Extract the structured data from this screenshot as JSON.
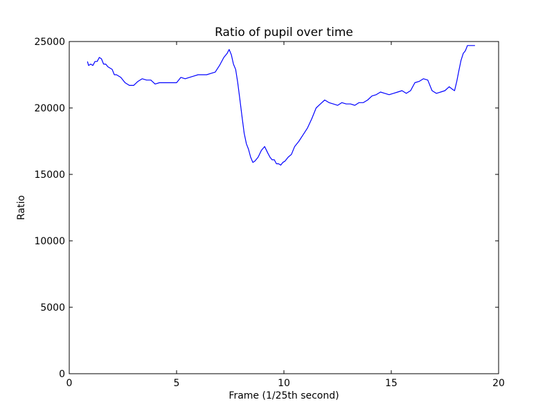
{
  "chart_data": {
    "type": "line",
    "title": "Ratio of pupil over time",
    "xlabel": "Frame (1/25th second)",
    "ylabel": "Ratio",
    "xlim": [
      0,
      20
    ],
    "ylim": [
      0,
      25000
    ],
    "xticks": [
      0,
      5,
      10,
      15,
      20
    ],
    "yticks": [
      0,
      5000,
      10000,
      15000,
      20000,
      25000
    ],
    "grid": false,
    "line_color": "#0000ff",
    "series": [
      {
        "x": [
          0.85,
          0.9,
          1.0,
          1.1,
          1.2,
          1.3,
          1.4,
          1.5,
          1.6,
          1.7,
          1.8,
          1.9,
          2.0,
          2.1,
          2.2,
          2.4,
          2.6,
          2.8,
          3.0,
          3.2,
          3.4,
          3.6,
          3.8,
          4.0,
          4.2,
          4.4,
          4.6,
          4.8,
          5.0,
          5.2,
          5.4,
          5.6,
          5.8,
          6.0,
          6.2,
          6.4,
          6.6,
          6.8,
          7.0,
          7.2,
          7.35,
          7.45,
          7.55,
          7.65,
          7.75,
          7.85,
          7.95,
          8.05,
          8.15,
          8.25,
          8.35,
          8.45,
          8.55,
          8.65,
          8.8,
          8.95,
          9.1,
          9.25,
          9.35,
          9.45,
          9.55,
          9.65,
          9.75,
          9.85,
          9.95,
          10.05,
          10.2,
          10.35,
          10.5,
          10.7,
          10.9,
          11.1,
          11.3,
          11.5,
          11.7,
          11.9,
          12.1,
          12.3,
          12.5,
          12.7,
          12.9,
          13.1,
          13.3,
          13.5,
          13.7,
          13.9,
          14.1,
          14.3,
          14.5,
          14.7,
          14.9,
          15.1,
          15.3,
          15.5,
          15.7,
          15.9,
          16.1,
          16.3,
          16.5,
          16.7,
          16.9,
          17.1,
          17.3,
          17.5,
          17.7,
          17.85,
          17.95,
          18.05,
          18.15,
          18.25,
          18.35,
          18.45,
          18.55,
          18.65,
          18.75,
          18.85,
          18.9
        ],
        "y": [
          23500,
          23200,
          23300,
          23200,
          23500,
          23500,
          23800,
          23700,
          23300,
          23300,
          23100,
          23000,
          22900,
          22500,
          22500,
          22300,
          21900,
          21700,
          21700,
          22000,
          22200,
          22100,
          22100,
          21800,
          21900,
          21900,
          21900,
          21900,
          21900,
          22300,
          22200,
          22300,
          22400,
          22500,
          22500,
          22500,
          22600,
          22700,
          23200,
          23800,
          24100,
          24400,
          24000,
          23300,
          22900,
          21900,
          20600,
          19300,
          18100,
          17300,
          16900,
          16300,
          15900,
          16000,
          16300,
          16800,
          17100,
          16600,
          16300,
          16100,
          16100,
          15800,
          15800,
          15700,
          15900,
          16000,
          16300,
          16500,
          17100,
          17500,
          18000,
          18500,
          19200,
          20000,
          20300,
          20600,
          20400,
          20300,
          20200,
          20400,
          20300,
          20300,
          20200,
          20400,
          20400,
          20600,
          20900,
          21000,
          21200,
          21100,
          21000,
          21100,
          21200,
          21300,
          21100,
          21300,
          21900,
          22000,
          22200,
          22100,
          21300,
          21100,
          21200,
          21300,
          21600,
          21400,
          21300,
          22000,
          22800,
          23600,
          24100,
          24300,
          24700,
          24700,
          24700,
          24700,
          24700
        ]
      }
    ]
  }
}
